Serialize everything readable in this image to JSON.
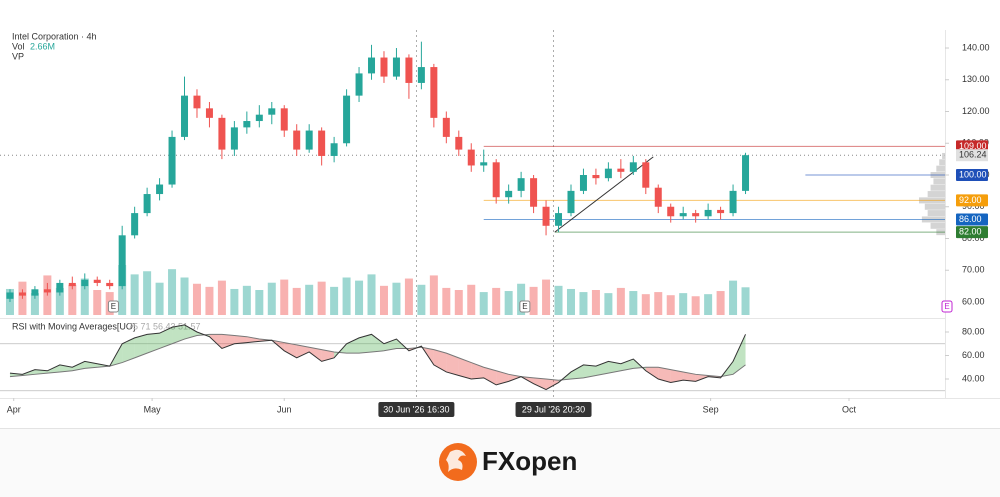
{
  "chart_data": {
    "type": "candlestick",
    "title": "Intel Corporation · 4h",
    "legend_volume": "Vol",
    "legend_volume_value": "2.66M",
    "legend_vp": "VP",
    "xlim": [
      -0.8,
      75
    ],
    "xticks": [
      {
        "value": 0.3,
        "label": "Apr"
      },
      {
        "value": 11.4,
        "label": "May"
      },
      {
        "value": 22,
        "label": "Jun"
      },
      {
        "value": 56.2,
        "label": "Sep"
      },
      {
        "value": 67.3,
        "label": "Oct"
      }
    ],
    "crosshairs": [
      {
        "value": 32.6,
        "label": "30 Jun '26  16:30"
      },
      {
        "value": 43.6,
        "label": "29 Jul '26  20:30"
      }
    ],
    "ylim": [
      55.9,
      144.1
    ],
    "yticks": [
      {
        "value": 60,
        "label": "60.00"
      },
      {
        "value": 70,
        "label": "70.00"
      },
      {
        "value": 80,
        "label": "80.00"
      },
      {
        "value": 90,
        "label": "90.00"
      },
      {
        "value": 100,
        "label": "100.00"
      },
      {
        "value": 110,
        "label": "110.00"
      },
      {
        "value": 120,
        "label": "120.00"
      },
      {
        "value": 130,
        "label": "130.00"
      },
      {
        "value": 140,
        "label": "140.00"
      }
    ],
    "up_color": "#26a69a",
    "down_color": "#ef5350",
    "open": [
      61,
      63,
      62,
      64,
      63,
      66,
      65,
      67,
      66,
      65,
      81,
      88,
      94,
      97,
      112,
      125,
      121,
      118,
      108,
      115,
      117,
      119,
      121,
      114,
      108,
      114,
      106,
      110,
      125,
      132,
      137,
      131,
      137,
      129,
      134,
      118,
      112,
      108,
      103,
      104,
      93,
      95,
      99,
      90,
      84,
      88,
      95,
      100,
      99,
      102,
      101,
      104,
      96,
      90,
      87,
      88,
      87,
      89,
      88,
      95
    ],
    "high": [
      64,
      64,
      65,
      66,
      67,
      68,
      69,
      68,
      67,
      84,
      90,
      96,
      99,
      114,
      131,
      127,
      123,
      119,
      117,
      120,
      122,
      123,
      122,
      116,
      116,
      115,
      112,
      127,
      134,
      141,
      139,
      140,
      138,
      142,
      135,
      120,
      114,
      110,
      108,
      105,
      97,
      101,
      100,
      92,
      90,
      97,
      102,
      102,
      104,
      105,
      106,
      105,
      97,
      91,
      90,
      89,
      91,
      90,
      97,
      107
    ],
    "low": [
      60,
      61,
      61,
      62,
      62,
      64,
      64,
      65,
      64,
      64,
      80,
      87,
      92,
      96,
      111,
      118,
      115,
      105,
      106,
      113,
      115,
      116,
      112,
      106,
      107,
      103,
      104,
      109,
      123,
      130,
      129,
      130,
      124,
      127,
      115,
      110,
      106,
      101,
      101,
      91,
      91,
      93,
      88,
      81,
      82,
      87,
      94,
      97,
      98,
      99,
      100,
      94,
      88,
      85,
      86,
      85,
      86,
      86,
      87,
      94
    ],
    "close": [
      63,
      62,
      64,
      63,
      66,
      65,
      67,
      66,
      65,
      81,
      88,
      94,
      97,
      112,
      125,
      121,
      118,
      108,
      115,
      117,
      119,
      121,
      114,
      108,
      114,
      106,
      110,
      125,
      132,
      137,
      131,
      137,
      129,
      134,
      118,
      112,
      108,
      103,
      104,
      93,
      95,
      99,
      90,
      84,
      88,
      95,
      100,
      99,
      102,
      101,
      104,
      96,
      90,
      87,
      88,
      87,
      89,
      88,
      95,
      106.24
    ],
    "volume": [
      2.5,
      3.2,
      2.1,
      3.8,
      2.6,
      2.9,
      3.5,
      2.4,
      2.2,
      4.8,
      3.9,
      4.2,
      3.1,
      4.4,
      3.6,
      3.0,
      2.7,
      3.3,
      2.5,
      2.8,
      2.4,
      3.1,
      3.4,
      2.6,
      2.9,
      3.2,
      2.7,
      3.6,
      3.3,
      3.9,
      2.8,
      3.1,
      3.5,
      2.9,
      3.8,
      2.6,
      2.4,
      2.9,
      2.2,
      2.6,
      2.3,
      3.0,
      2.7,
      3.4,
      2.8,
      2.5,
      2.2,
      2.4,
      2.1,
      2.6,
      2.3,
      2.0,
      2.2,
      1.9,
      2.1,
      1.8,
      2.0,
      2.3,
      3.3,
      2.66
    ],
    "last_price": {
      "value": 106.24,
      "label": "106.24"
    },
    "levels": [
      {
        "value": 109,
        "label": "109.00",
        "color": "#c62828",
        "start": 38
      },
      {
        "value": 100,
        "label": "100.00",
        "color": "#1e4fb8",
        "start": 63.8
      },
      {
        "value": 92,
        "label": "92.00",
        "color": "#f59e0b",
        "start": 38
      },
      {
        "value": 86,
        "label": "86.00",
        "color": "#1565c0",
        "start": 38
      },
      {
        "value": 82,
        "label": "82.00",
        "color": "#2e7d32",
        "start": 43.7
      }
    ],
    "trendline": {
      "x": [
        43.7,
        51.6
      ],
      "y": [
        82,
        105.7
      ]
    },
    "volume_profile": {
      "prices": [
        82,
        84,
        86,
        88,
        90,
        92,
        94,
        96,
        98,
        100,
        102,
        104,
        106
      ],
      "volumes": [
        3,
        5,
        8,
        6,
        7,
        9,
        6,
        5,
        4,
        5,
        3,
        2,
        1
      ]
    },
    "earnings": [
      8.3,
      41.3
    ],
    "earnings_label": "E",
    "rsi_title": "RSI with Moving Averages[UO]",
    "rsi_legend_values": "75 71 56.43 51.57",
    "rsi_ylim": [
      26.4,
      90.2
    ],
    "rsi_yticks": [
      {
        "value": 40,
        "label": "40.00"
      },
      {
        "value": 60,
        "label": "60.00"
      },
      {
        "value": 80,
        "label": "80.00"
      }
    ],
    "rsi_bands": [
      70,
      30
    ],
    "rsi": {
      "values": [
        45,
        44,
        48,
        47,
        52,
        50,
        55,
        53,
        51,
        70,
        75,
        78,
        79,
        84,
        86,
        80,
        76,
        66,
        70,
        71,
        72,
        73,
        64,
        58,
        63,
        55,
        58,
        70,
        75,
        78,
        70,
        74,
        64,
        68,
        52,
        46,
        43,
        40,
        41,
        35,
        38,
        42,
        36,
        31,
        37,
        46,
        52,
        51,
        55,
        53,
        57,
        47,
        40,
        37,
        39,
        38,
        42,
        41,
        55,
        78
      ]
    },
    "rsi_ma": {
      "values": [
        42,
        43,
        44,
        45,
        46,
        47,
        49,
        50,
        51,
        54,
        58,
        62,
        66,
        70,
        74,
        77,
        78,
        78,
        77,
        76,
        74,
        73,
        71,
        69,
        67,
        65,
        63,
        62,
        62,
        63,
        64,
        66,
        66,
        67,
        65,
        62,
        58,
        54,
        50,
        47,
        44,
        42,
        41,
        40,
        39,
        40,
        41,
        43,
        45,
        47,
        49,
        50,
        50,
        48,
        46,
        44,
        43,
        42,
        44,
        52
      ]
    },
    "brand": "FXopen"
  }
}
